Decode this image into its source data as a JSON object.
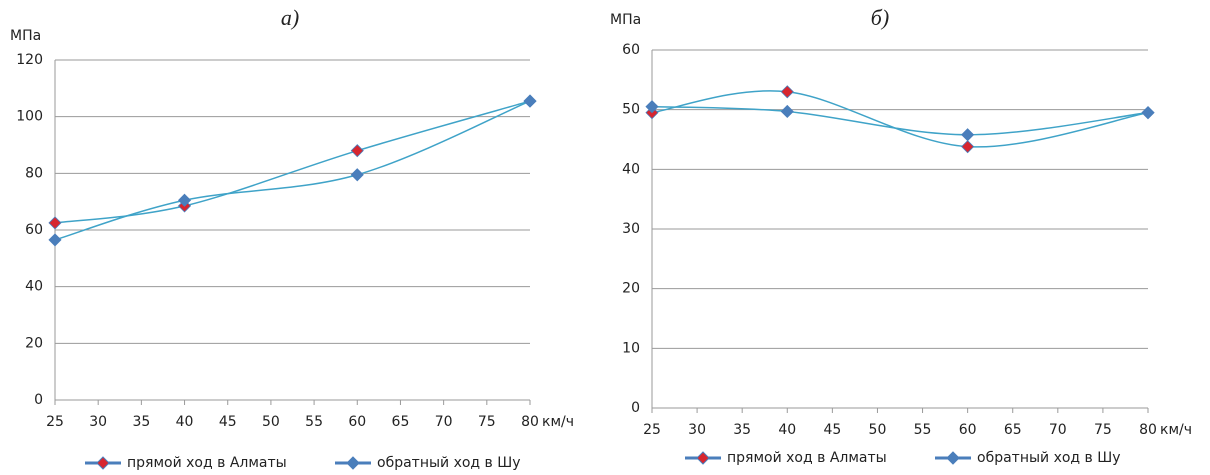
{
  "chart_data": [
    {
      "type": "line",
      "title": "а)",
      "y_label": "МПа",
      "x_label": "км/ч",
      "x": [
        25,
        40,
        60,
        80
      ],
      "xlim": [
        25,
        80
      ],
      "xticks": [
        25,
        30,
        35,
        40,
        45,
        50,
        55,
        60,
        65,
        70,
        75,
        80
      ],
      "ylim": [
        0,
        120
      ],
      "yticks": [
        0,
        20,
        40,
        60,
        80,
        100,
        120
      ],
      "grid": true,
      "smooth": true,
      "line_color": "#3fa3c8",
      "series": [
        {
          "name": "прямой ход в Алматы",
          "color": "#d7262f",
          "values": [
            62.5,
            68.5,
            88,
            105.5
          ]
        },
        {
          "name": "обратный ход в Шу",
          "color": "#4a7ebb",
          "values": [
            56.5,
            70.5,
            79.5,
            105.5
          ]
        }
      ]
    },
    {
      "type": "line",
      "title": "б)",
      "y_label": "МПа",
      "x_label": "км/ч",
      "x": [
        25,
        40,
        60,
        80
      ],
      "xlim": [
        25,
        80
      ],
      "xticks": [
        25,
        30,
        35,
        40,
        45,
        50,
        55,
        60,
        65,
        70,
        75,
        80
      ],
      "ylim": [
        0,
        60
      ],
      "yticks": [
        0,
        10,
        20,
        30,
        40,
        50,
        60
      ],
      "grid": true,
      "smooth": true,
      "line_color": "#3fa3c8",
      "series": [
        {
          "name": "прямой ход в Алматы",
          "color": "#d7262f",
          "values": [
            49.5,
            53,
            43.8,
            49.5
          ]
        },
        {
          "name": "обратный ход в Шу",
          "color": "#4a7ebb",
          "values": [
            50.5,
            49.7,
            45.8,
            49.5
          ]
        }
      ]
    }
  ]
}
